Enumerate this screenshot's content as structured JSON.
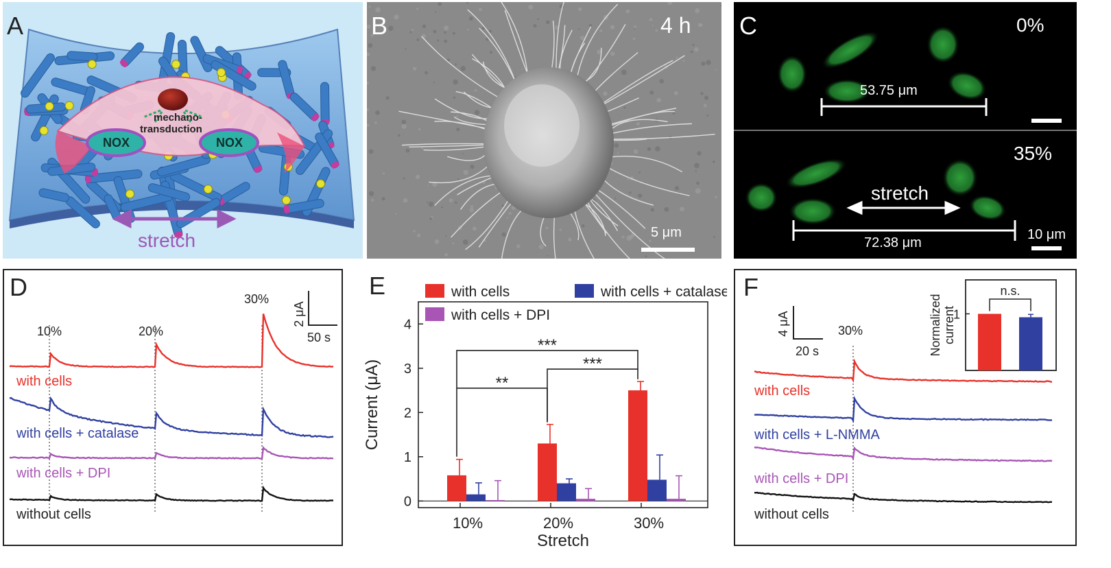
{
  "panels": {
    "A": {
      "label": "A",
      "mechano": [
        "mechano-",
        "transduction"
      ],
      "nox_left": "NOX",
      "nox_right": "NOX",
      "stretch": "stretch",
      "colors": {
        "bg": "#cde8f7",
        "rod": "#3b7cc4",
        "cell": "#f4b8c8",
        "nucleus": "#8b1a1a",
        "nox": "#2fb3a8",
        "arrow": "#9b59b6"
      }
    },
    "B": {
      "label": "B",
      "time": "4 h",
      "scalebar": "5 μm"
    },
    "C": {
      "label": "C",
      "top_pct": "0%",
      "top_distance": "53.75 μm",
      "bottom_pct": "35%",
      "stretch": "stretch",
      "bottom_distance": "72.38 μm",
      "scalebar": "10 μm"
    },
    "D": {
      "label": "D"
    },
    "E": {
      "label": "E"
    },
    "F": {
      "label": "F"
    }
  },
  "chart_data": [
    {
      "type": "line",
      "panel": "D",
      "stretch_labels": [
        "10%",
        "20%",
        "30%"
      ],
      "scale_bar": {
        "y": "2 μA",
        "x": "50 s"
      },
      "series": [
        {
          "name": "with cells",
          "color": "#e8312a",
          "peaks": [
            1.0,
            1.7,
            4.1
          ],
          "baseline_drift": "flat"
        },
        {
          "name": "with cells + catalase",
          "color": "#3040a0",
          "peaks": [
            1.0,
            1.2,
            2.0
          ],
          "baseline_drift": "decaying"
        },
        {
          "name": "with cells + DPI",
          "color": "#a855b5",
          "peaks": [
            0.3,
            0.4,
            0.8
          ],
          "baseline_drift": "flat"
        },
        {
          "name": "without cells",
          "color": "#111111",
          "peaks": [
            0.3,
            0.5,
            1.0
          ],
          "baseline_drift": "flat"
        }
      ]
    },
    {
      "type": "bar",
      "panel": "E",
      "xlabel": "Stretch",
      "ylabel": "Current (μA)",
      "categories": [
        "10%",
        "20%",
        "30%"
      ],
      "ylim": [
        -0.15,
        4.5
      ],
      "yticks": [
        0,
        1,
        2,
        3,
        4
      ],
      "series": [
        {
          "name": "with cells",
          "color": "#e8312a",
          "values": [
            0.58,
            1.3,
            2.5
          ],
          "errors": [
            0.36,
            0.43,
            0.2
          ]
        },
        {
          "name": "with cells + catalase",
          "color": "#3040a0",
          "values": [
            0.15,
            0.4,
            0.48
          ],
          "errors": [
            0.26,
            0.1,
            0.56
          ]
        },
        {
          "name": "with cells + DPI",
          "color": "#a855b5",
          "values": [
            0.02,
            0.05,
            0.05
          ],
          "errors": [
            0.44,
            0.23,
            0.52
          ]
        }
      ],
      "significance": [
        {
          "from": "10%",
          "to": "20%",
          "label": "**"
        },
        {
          "from": "20%",
          "to": "30%",
          "label": "***"
        },
        {
          "from": "10%",
          "to": "30%",
          "label": "***"
        }
      ]
    },
    {
      "type": "line",
      "panel": "F",
      "stretch_labels": [
        "30%"
      ],
      "scale_bar": {
        "y": "4 μA",
        "x": "20 s"
      },
      "series": [
        {
          "name": "with cells",
          "color": "#e8312a",
          "peak": 1.0
        },
        {
          "name": "with cells + L-NMMA",
          "color": "#3040a0",
          "peak": 1.2
        },
        {
          "name": "with cells + DPI",
          "color": "#a855b5",
          "peak": 0.5
        },
        {
          "name": "without cells",
          "color": "#111111",
          "peak": 0.3
        }
      ],
      "inset": {
        "type": "bar",
        "ylabel": "Normalized current",
        "yticks": [
          1
        ],
        "values": [
          1.0,
          0.94
        ],
        "errors": [
          0,
          0.05
        ],
        "colors": [
          "#e8312a",
          "#3040a0"
        ],
        "significance": "n.s."
      }
    }
  ]
}
